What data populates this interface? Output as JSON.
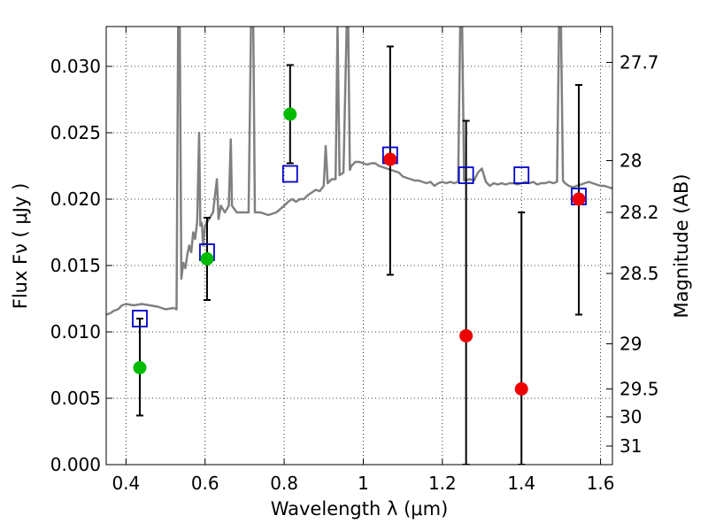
{
  "chart_data": {
    "type": "scatter",
    "xlabel": "Wavelength  λ (μm)",
    "ylabel": "Flux  Fν  ( μJy )",
    "y2label": "Magnitude (AB)",
    "xlim": [
      0.35,
      1.63
    ],
    "ylim": [
      0.0,
      0.033
    ],
    "grid": true,
    "x_ticks": [
      0.4,
      0.6,
      0.8,
      1.0,
      1.2,
      1.4,
      1.6
    ],
    "x_tick_labels": [
      "0.4",
      "0.6",
      "0.8",
      "1",
      "1.2",
      "1.4",
      "1.6"
    ],
    "y_ticks": [
      0.0,
      0.005,
      0.01,
      0.015,
      0.02,
      0.025,
      0.03
    ],
    "y_tick_labels": [
      "0.000",
      "0.005",
      "0.010",
      "0.015",
      "0.020",
      "0.025",
      "0.030"
    ],
    "y2_ticks": [
      {
        "flux": 0.0303,
        "label": "27.7"
      },
      {
        "flux": 0.0229,
        "label": "28"
      },
      {
        "flux": 0.019,
        "label": "28.2"
      },
      {
        "flux": 0.0144,
        "label": "28.5"
      },
      {
        "flux": 0.0091,
        "label": "29"
      },
      {
        "flux": 0.0057,
        "label": "29.5"
      },
      {
        "flux": 0.0036,
        "label": "30"
      },
      {
        "flux": 0.0014,
        "label": "31"
      }
    ],
    "colors": {
      "spectrum": "#808080",
      "model": "#0000cc",
      "green": "#00bb00",
      "red": "#ee0000",
      "errorbar": "#000000"
    },
    "series": [
      {
        "kind": "line",
        "points": [
          [
            0.35,
            0.0113
          ],
          [
            0.36,
            0.0114
          ],
          [
            0.37,
            0.0116
          ],
          [
            0.38,
            0.0117
          ],
          [
            0.39,
            0.012
          ],
          [
            0.4,
            0.0121
          ],
          [
            0.42,
            0.012
          ],
          [
            0.44,
            0.0121
          ],
          [
            0.46,
            0.012
          ],
          [
            0.48,
            0.0119
          ],
          [
            0.5,
            0.0117
          ],
          [
            0.52,
            0.0118
          ],
          [
            0.528,
            0.0117
          ],
          [
            0.532,
            0.033
          ],
          [
            0.536,
            0.033
          ],
          [
            0.54,
            0.014
          ],
          [
            0.545,
            0.0152
          ],
          [
            0.55,
            0.0148
          ],
          [
            0.555,
            0.0158
          ],
          [
            0.56,
            0.0165
          ],
          [
            0.565,
            0.016
          ],
          [
            0.57,
            0.0175
          ],
          [
            0.575,
            0.017
          ],
          [
            0.58,
            0.0183
          ],
          [
            0.585,
            0.025
          ],
          [
            0.588,
            0.018
          ],
          [
            0.592,
            0.0182
          ],
          [
            0.595,
            0.0165
          ],
          [
            0.6,
            0.018
          ],
          [
            0.61,
            0.0185
          ],
          [
            0.62,
            0.019
          ],
          [
            0.63,
            0.0215
          ],
          [
            0.634,
            0.0185
          ],
          [
            0.64,
            0.0195
          ],
          [
            0.65,
            0.019
          ],
          [
            0.66,
            0.0195
          ],
          [
            0.665,
            0.0245
          ],
          [
            0.668,
            0.0195
          ],
          [
            0.68,
            0.019
          ],
          [
            0.69,
            0.019
          ],
          [
            0.7,
            0.019
          ],
          [
            0.71,
            0.019
          ],
          [
            0.716,
            0.033
          ],
          [
            0.722,
            0.033
          ],
          [
            0.726,
            0.019
          ],
          [
            0.74,
            0.019
          ],
          [
            0.76,
            0.0188
          ],
          [
            0.78,
            0.019
          ],
          [
            0.8,
            0.0195
          ],
          [
            0.81,
            0.0198
          ],
          [
            0.82,
            0.02
          ],
          [
            0.83,
            0.0198
          ],
          [
            0.84,
            0.02
          ],
          [
            0.85,
            0.02
          ],
          [
            0.86,
            0.0203
          ],
          [
            0.87,
            0.0205
          ],
          [
            0.88,
            0.0207
          ],
          [
            0.89,
            0.0206
          ],
          [
            0.9,
            0.021
          ],
          [
            0.905,
            0.024
          ],
          [
            0.91,
            0.0212
          ],
          [
            0.92,
            0.0215
          ],
          [
            0.93,
            0.0215
          ],
          [
            0.935,
            0.033
          ],
          [
            0.94,
            0.0218
          ],
          [
            0.95,
            0.022
          ],
          [
            0.958,
            0.033
          ],
          [
            0.962,
            0.033
          ],
          [
            0.966,
            0.0222
          ],
          [
            0.97,
            0.0225
          ],
          [
            0.98,
            0.0228
          ],
          [
            0.99,
            0.0228
          ],
          [
            1.0,
            0.0227
          ],
          [
            1.01,
            0.0226
          ],
          [
            1.02,
            0.0227
          ],
          [
            1.03,
            0.0227
          ],
          [
            1.04,
            0.0225
          ],
          [
            1.05,
            0.0224
          ],
          [
            1.06,
            0.0223
          ],
          [
            1.07,
            0.0222
          ],
          [
            1.08,
            0.0221
          ],
          [
            1.09,
            0.022
          ],
          [
            1.1,
            0.0217
          ],
          [
            1.11,
            0.0216
          ],
          [
            1.12,
            0.0215
          ],
          [
            1.13,
            0.0214
          ],
          [
            1.14,
            0.0214
          ],
          [
            1.15,
            0.0213
          ],
          [
            1.16,
            0.0212
          ],
          [
            1.17,
            0.0213
          ],
          [
            1.18,
            0.021
          ],
          [
            1.19,
            0.0212
          ],
          [
            1.2,
            0.0213
          ],
          [
            1.21,
            0.0212
          ],
          [
            1.22,
            0.0213
          ],
          [
            1.23,
            0.0212
          ],
          [
            1.24,
            0.0213
          ],
          [
            1.245,
            0.033
          ],
          [
            1.25,
            0.033
          ],
          [
            1.255,
            0.0214
          ],
          [
            1.27,
            0.0215
          ],
          [
            1.28,
            0.0214
          ],
          [
            1.29,
            0.022
          ],
          [
            1.3,
            0.0223
          ],
          [
            1.31,
            0.0213
          ],
          [
            1.32,
            0.021
          ],
          [
            1.33,
            0.0212
          ],
          [
            1.34,
            0.0211
          ],
          [
            1.35,
            0.0212
          ],
          [
            1.36,
            0.0211
          ],
          [
            1.37,
            0.0212
          ],
          [
            1.38,
            0.0212
          ],
          [
            1.39,
            0.0211
          ],
          [
            1.4,
            0.0212
          ],
          [
            1.41,
            0.0213
          ],
          [
            1.42,
            0.0212
          ],
          [
            1.43,
            0.0213
          ],
          [
            1.44,
            0.0211
          ],
          [
            1.45,
            0.0212
          ],
          [
            1.46,
            0.0212
          ],
          [
            1.47,
            0.0213
          ],
          [
            1.48,
            0.0212
          ],
          [
            1.49,
            0.0213
          ],
          [
            1.495,
            0.033
          ],
          [
            1.5,
            0.033
          ],
          [
            1.505,
            0.0214
          ],
          [
            1.51,
            0.0212
          ],
          [
            1.52,
            0.021
          ],
          [
            1.53,
            0.0209
          ],
          [
            1.54,
            0.021
          ],
          [
            1.55,
            0.0211
          ],
          [
            1.56,
            0.0212
          ],
          [
            1.57,
            0.0213
          ],
          [
            1.58,
            0.0212
          ],
          [
            1.59,
            0.0211
          ],
          [
            1.6,
            0.021
          ],
          [
            1.61,
            0.021
          ],
          [
            1.62,
            0.0209
          ],
          [
            1.63,
            0.0208
          ]
        ]
      },
      {
        "kind": "open-square",
        "x": [
          0.435,
          0.605,
          0.815,
          1.068,
          1.26,
          1.4,
          1.545
        ],
        "y": [
          0.011,
          0.016,
          0.0219,
          0.0233,
          0.0218,
          0.0218,
          0.0202
        ]
      },
      {
        "kind": "filled-circle",
        "x": [
          0.435,
          0.605,
          0.815
        ],
        "y": [
          0.0073,
          0.0155,
          0.0264
        ],
        "err_low": [
          0.0037,
          0.0124,
          0.0227
        ],
        "err_high": [
          0.011,
          0.0186,
          0.0301
        ]
      },
      {
        "kind": "filled-circle",
        "x": [
          1.068,
          1.26,
          1.4,
          1.545
        ],
        "y": [
          0.023,
          0.0097,
          0.0057,
          0.02
        ],
        "err_low": [
          0.0143,
          0.0,
          0.0,
          0.0113
        ],
        "err_high": [
          0.0315,
          0.0259,
          0.019,
          0.0286
        ]
      }
    ]
  }
}
